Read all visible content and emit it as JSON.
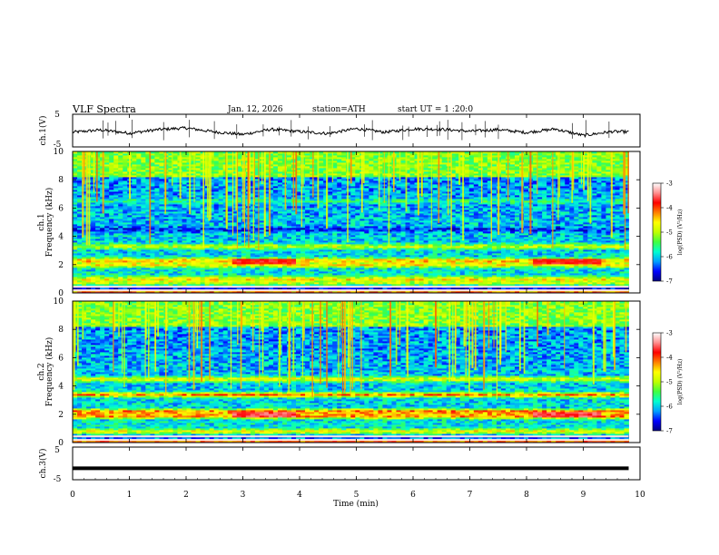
{
  "header": {
    "title": "VLF Spectra",
    "date": "Jan. 12, 2026",
    "station": "station=ATH",
    "start_ut": "start UT =  1 :20:0"
  },
  "colorbar": {
    "label": "log(PSD) (V²/Hz)",
    "min": -7,
    "max": -3,
    "ticks": [
      "-3",
      "-4",
      "-5",
      "-6",
      "-7"
    ],
    "colors": [
      "#000080",
      "#0000ff",
      "#00a0ff",
      "#00ffd0",
      "#40ff40",
      "#c0ff00",
      "#ffff00",
      "#ff8000",
      "#ff0000",
      "#ff9090",
      "#ffffff"
    ]
  },
  "chart_data": [
    {
      "type": "line",
      "name": "ch1-waveform",
      "ylabel": "ch.1(V)",
      "ylim": [
        -5,
        5
      ],
      "yticks": [
        "5",
        "-5"
      ],
      "x": [
        0,
        0.5,
        1,
        1.5,
        2,
        2.5,
        3,
        3.5,
        4,
        4.5,
        5,
        5.5,
        6,
        6.5,
        7,
        7.5,
        8,
        8.5,
        9,
        9.5,
        9.8
      ],
      "y": [
        -0.5,
        0.2,
        -0.8,
        0.3,
        0.8,
        -0.4,
        -1.2,
        0.4,
        -0.3,
        -0.9,
        0.6,
        -0.5,
        0.5,
        0.4,
        -0.2,
        0.3,
        -0.6,
        0.5,
        -1.5,
        -0.3,
        -0.4
      ]
    },
    {
      "type": "heatmap",
      "name": "ch1-spectrogram",
      "ylabel": "Frequency (kHz)",
      "panel_label": "ch.1",
      "xlim": [
        0,
        9.8
      ],
      "ylim": [
        0,
        10
      ],
      "yticks": [
        "0",
        "2",
        "4",
        "6",
        "8",
        "10"
      ],
      "bands": [
        {
          "freq": 0.15,
          "value": -3.2
        },
        {
          "freq": 0.35,
          "value": -6.9
        },
        {
          "freq": 0.75,
          "value": -4.8
        },
        {
          "freq": 1.0,
          "value": -4.5
        },
        {
          "freq": 2.0,
          "value": -4.6
        },
        {
          "freq": 2.3,
          "value": -4.2
        },
        {
          "freq": 3.3,
          "value": -4.8
        },
        {
          "freq": 4.5,
          "value": -6.6
        },
        {
          "freq": 6.5,
          "value": -5.6
        }
      ],
      "events": [
        {
          "t_start": 2.8,
          "t_end": 3.9,
          "freq": 2.3,
          "value": -3.8
        },
        {
          "t_start": 8.1,
          "t_end": 9.3,
          "freq": 2.3,
          "value": -3.8
        }
      ]
    },
    {
      "type": "heatmap",
      "name": "ch2-spectrogram",
      "ylabel": "Frequency (kHz)",
      "panel_label": "ch.2",
      "xlim": [
        0,
        9.8
      ],
      "ylim": [
        0,
        10
      ],
      "yticks": [
        "0",
        "2",
        "4",
        "6",
        "8",
        "10"
      ],
      "bands": [
        {
          "freq": 0.15,
          "value": -3.2
        },
        {
          "freq": 0.4,
          "value": -6.9
        },
        {
          "freq": 0.8,
          "value": -4.6
        },
        {
          "freq": 1.9,
          "value": -4.0
        },
        {
          "freq": 2.2,
          "value": -3.9
        },
        {
          "freq": 3.4,
          "value": -4.2
        },
        {
          "freq": 4.5,
          "value": -4.6
        }
      ],
      "events": [
        {
          "t_start": 2.8,
          "t_end": 3.9,
          "freq": 2.0,
          "value": -3.6
        },
        {
          "t_start": 8.1,
          "t_end": 9.3,
          "freq": 2.0,
          "value": -3.6
        }
      ]
    },
    {
      "type": "line",
      "name": "ch3-waveform",
      "ylabel": "ch.3(V)",
      "ylim": [
        -5,
        5
      ],
      "yticks": [
        "5",
        "-5"
      ],
      "x": [
        0,
        9.8
      ],
      "y": [
        -1.5,
        -1.5
      ]
    }
  ],
  "xaxis": {
    "label": "Time (min)",
    "ticks": [
      "0",
      "1",
      "2",
      "3",
      "4",
      "5",
      "6",
      "7",
      "8",
      "9",
      "10"
    ],
    "range": [
      0,
      10
    ]
  }
}
